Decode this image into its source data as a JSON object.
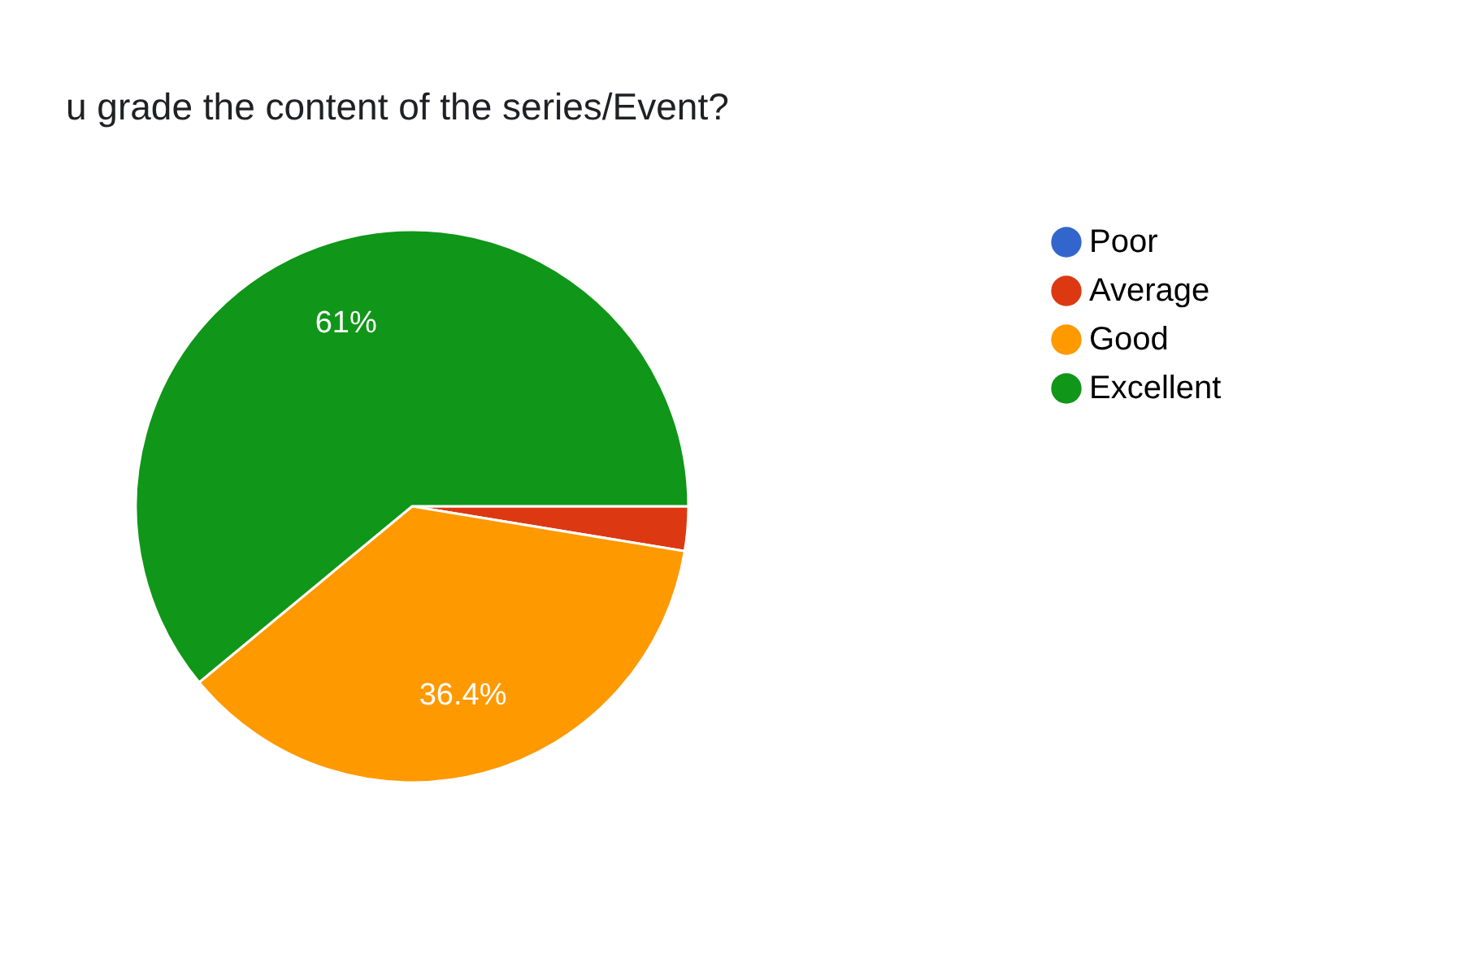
{
  "chart_data": {
    "type": "pie",
    "title": "u grade the content of the series/Event?",
    "categories": [
      "Poor",
      "Average",
      "Good",
      "Excellent"
    ],
    "values": [
      0,
      2.6,
      36.4,
      61
    ],
    "colors": [
      "#3366cc",
      "#dc3912",
      "#ff9900",
      "#109618"
    ],
    "value_labels": [
      null,
      null,
      "36.4%",
      "61%"
    ],
    "legend": "right"
  }
}
